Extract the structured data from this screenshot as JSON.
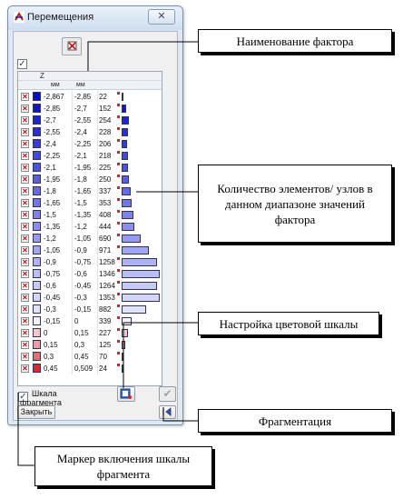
{
  "window": {
    "title": "Перемещения",
    "close_glyph": "✕"
  },
  "toolbar": {
    "icon": "clear-selection-icon"
  },
  "header": {
    "factor": "Z",
    "unit_from": "мм",
    "unit_to": "мм"
  },
  "rows": [
    {
      "from": "-2,867",
      "to": "-2,85",
      "count": "22",
      "level": 22,
      "color": "#0a0ad0",
      "checked": true
    },
    {
      "from": "-2,85",
      "to": "-2,7",
      "count": "152",
      "level": 152,
      "color": "#1414d6",
      "checked": true
    },
    {
      "from": "-2,7",
      "to": "-2,55",
      "count": "254",
      "level": 254,
      "color": "#1e22da",
      "checked": true
    },
    {
      "from": "-2,55",
      "to": "-2,4",
      "count": "228",
      "level": 228,
      "color": "#2a2ede",
      "checked": true
    },
    {
      "from": "-2,4",
      "to": "-2,25",
      "count": "206",
      "level": 206,
      "color": "#363ae0",
      "checked": true
    },
    {
      "from": "-2,25",
      "to": "-2,1",
      "count": "218",
      "level": 218,
      "color": "#4246e2",
      "checked": true
    },
    {
      "from": "-2,1",
      "to": "-1,95",
      "count": "225",
      "level": 225,
      "color": "#4e52e4",
      "checked": true
    },
    {
      "from": "-1,95",
      "to": "-1,8",
      "count": "250",
      "level": 250,
      "color": "#5a5ee6",
      "checked": true
    },
    {
      "from": "-1,8",
      "to": "-1,65",
      "count": "337",
      "level": 337,
      "color": "#666ae8",
      "checked": true
    },
    {
      "from": "-1,65",
      "to": "-1,5",
      "count": "353",
      "level": 353,
      "color": "#7276ea",
      "checked": true
    },
    {
      "from": "-1,5",
      "to": "-1,35",
      "count": "408",
      "level": 408,
      "color": "#7e82ec",
      "checked": true
    },
    {
      "from": "-1,35",
      "to": "-1,2",
      "count": "444",
      "level": 444,
      "color": "#8a8eee",
      "checked": true
    },
    {
      "from": "-1,2",
      "to": "-1,05",
      "count": "690",
      "level": 690,
      "color": "#969af0",
      "checked": true
    },
    {
      "from": "-1,05",
      "to": "-0,9",
      "count": "971",
      "level": 971,
      "color": "#a2a6f2",
      "checked": true
    },
    {
      "from": "-0,9",
      "to": "-0,75",
      "count": "1258",
      "level": 1258,
      "color": "#aeb2f4",
      "checked": true
    },
    {
      "from": "-0,75",
      "to": "-0,6",
      "count": "1346",
      "level": 1346,
      "color": "#babef6",
      "checked": true
    },
    {
      "from": "-0,6",
      "to": "-0,45",
      "count": "1264",
      "level": 1264,
      "color": "#c6caf8",
      "checked": true
    },
    {
      "from": "-0,45",
      "to": "-0,3",
      "count": "1353",
      "level": 1353,
      "color": "#d2d6fa",
      "checked": true
    },
    {
      "from": "-0,3",
      "to": "-0,15",
      "count": "882",
      "level": 882,
      "color": "#dee2fc",
      "checked": true
    },
    {
      "from": "-0,15",
      "to": "0",
      "count": "339",
      "level": 339,
      "color": "#f4f4ff",
      "checked": true
    },
    {
      "from": "0",
      "to": "0,15",
      "count": "227",
      "level": 227,
      "color": "#f8c4c4",
      "checked": true
    },
    {
      "from": "0,15",
      "to": "0,3",
      "count": "125",
      "level": 125,
      "color": "#f29c9c",
      "checked": true
    },
    {
      "from": "0,3",
      "to": "0,45",
      "count": "70",
      "level": 70,
      "color": "#ec6c6c",
      "checked": true
    },
    {
      "from": "0,45",
      "to": "0,509",
      "count": "24",
      "level": 24,
      "color": "#e02828",
      "checked": true
    }
  ],
  "max_count": 1353,
  "bottom": {
    "fragment_scale_line1": "Шкала",
    "fragment_scale_line2": "фрагмента",
    "close_label": "Закрыть"
  },
  "callouts": {
    "factor_name": "Наименование фактора",
    "count_line1": "Количество элементов/ узлов в",
    "count_line2": "данном диапазоне значений",
    "count_line3": "фактора",
    "scale_settings": "Настройка цветовой шкалы",
    "fragmentation": "Фрагментация",
    "marker_line1": "Маркер включения шкалы",
    "marker_line2": "фрагмента"
  }
}
